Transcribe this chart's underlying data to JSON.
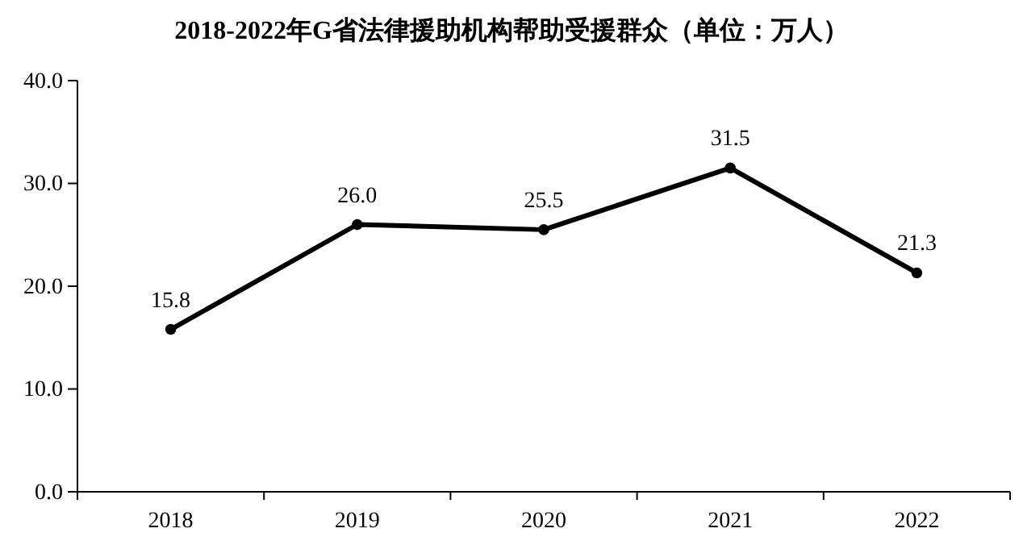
{
  "chart_data": {
    "type": "line",
    "title": "2018-2022年G省法律援助机构帮助受援群众（单位：万人）",
    "categories": [
      "2018",
      "2019",
      "2020",
      "2021",
      "2022"
    ],
    "series": [
      {
        "color": "#000000",
        "values": [
          15.8,
          26.0,
          25.5,
          31.5,
          21.3
        ],
        "value_labels": [
          "15.8",
          "26.0",
          "25.5",
          "31.5",
          "21.3"
        ]
      }
    ],
    "ylim": [
      0,
      40
    ],
    "yticks": [
      {
        "value": 0,
        "label": "0.0"
      },
      {
        "value": 10,
        "label": "10.0"
      },
      {
        "value": 20,
        "label": "20.0"
      },
      {
        "value": 30,
        "label": "30.0"
      },
      {
        "value": 40,
        "label": "40.0"
      }
    ],
    "grid": false,
    "marker": "circle",
    "line_style": "solid"
  }
}
